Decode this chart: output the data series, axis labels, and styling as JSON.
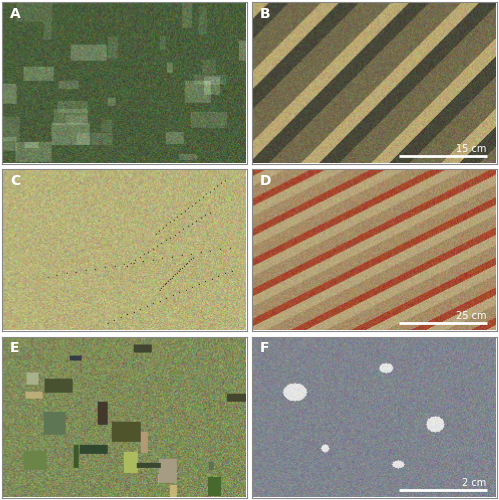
{
  "figure_title": "",
  "grid_rows": 3,
  "grid_cols": 2,
  "panels": [
    {
      "label": "A",
      "scale_bar": null,
      "scale_text": null,
      "dominant_colors": [
        "#4a5e3a",
        "#6b7a4a",
        "#3a4a2a",
        "#8a9a6a"
      ],
      "style": "dark_green_marly"
    },
    {
      "label": "B",
      "scale_bar": "15 cm",
      "scale_text": "15 cm",
      "dominant_colors": [
        "#b8a878",
        "#5a5a4a",
        "#8a8060",
        "#4a4a3a"
      ],
      "style": "yellow_gray_layered"
    },
    {
      "label": "C",
      "scale_bar": null,
      "scale_text": null,
      "dominant_colors": [
        "#c8c088",
        "#d0c878",
        "#a8a068",
        "#b0a870"
      ],
      "style": "yellowish_sandstone"
    },
    {
      "label": "D",
      "scale_bar": "25 cm",
      "scale_text": "25 cm",
      "dominant_colors": [
        "#c8a870",
        "#b07840",
        "#d0b880",
        "#8a6840"
      ],
      "style": "reddish_brown_layered"
    },
    {
      "label": "E",
      "scale_bar": null,
      "scale_text": null,
      "dominant_colors": [
        "#7a8a5a",
        "#a09858",
        "#606848",
        "#c0b870"
      ],
      "style": "disordered_breccia"
    },
    {
      "label": "F",
      "scale_bar": "2 cm",
      "scale_text": "2 cm",
      "dominant_colors": [
        "#7a8090",
        "#8a9098",
        "#6a7080",
        "#a0a8b0"
      ],
      "style": "gray_breccia_polished"
    }
  ],
  "border_color": "#ffffff",
  "label_color": "#000000",
  "label_bg": "#ffffff",
  "scale_bar_color": "#ffffff",
  "scale_text_color": "#ffffff",
  "outer_border_color": "#888888",
  "outer_border_lw": 1.0,
  "figsize": [
    4.99,
    5.0
  ],
  "dpi": 100
}
